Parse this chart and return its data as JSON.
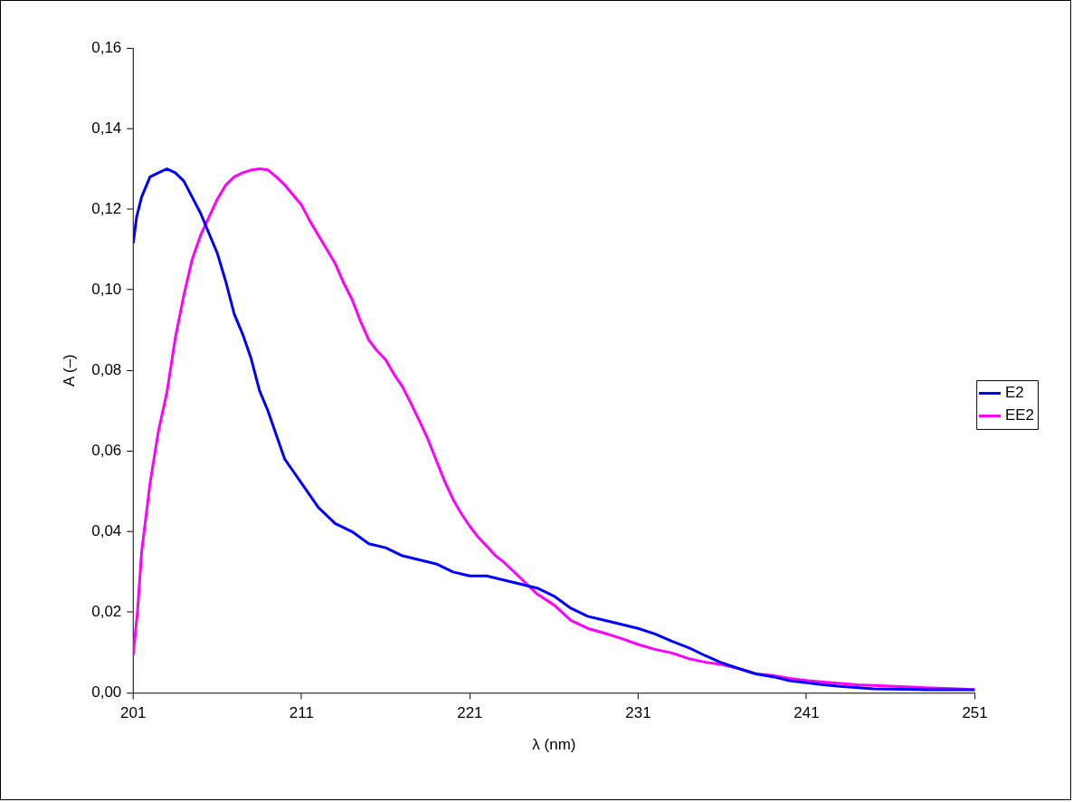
{
  "chart_data": {
    "type": "line",
    "xlabel": "λ (nm)",
    "ylabel": "A (–)",
    "xlim": [
      201,
      251
    ],
    "xticks": [
      201,
      211,
      221,
      231,
      241,
      251
    ],
    "ylim": [
      0,
      0.16
    ],
    "yticks": [
      {
        "value": 0,
        "label": "0,00"
      },
      {
        "value": 0.02,
        "label": "0,02"
      },
      {
        "value": 0.04,
        "label": "0,04"
      },
      {
        "value": 0.06,
        "label": "0,06"
      },
      {
        "value": 0.08,
        "label": "0,08"
      },
      {
        "value": 0.1,
        "label": "0,10"
      },
      {
        "value": 0.12,
        "label": "0,12"
      },
      {
        "value": 0.14,
        "label": "0,14"
      },
      {
        "value": 0.16,
        "label": "0,16"
      }
    ],
    "grid": false,
    "legend": "right",
    "marker": "none",
    "line_style": "solid",
    "series": [
      {
        "name": "E2",
        "color": "#0000ff",
        "x": [
          201,
          201.2,
          201.5,
          202,
          202.5,
          203,
          203.5,
          204,
          204.5,
          205,
          205.5,
          206,
          206.5,
          207,
          207.5,
          208,
          208.5,
          209,
          209.5,
          210,
          210.5,
          211,
          212,
          213,
          214,
          215,
          216,
          217,
          218,
          219,
          220,
          221,
          222,
          223,
          224,
          225,
          226,
          227,
          228,
          229,
          230,
          231,
          232,
          233,
          234,
          235,
          236,
          237,
          238,
          239,
          240,
          241,
          242,
          243,
          245,
          248,
          251
        ],
        "values": [
          0.1115,
          0.118,
          0.123,
          0.128,
          0.129,
          0.13,
          0.129,
          0.127,
          0.123,
          0.119,
          0.114,
          0.109,
          0.102,
          0.094,
          0.089,
          0.083,
          0.075,
          0.07,
          0.064,
          0.058,
          0.055,
          0.052,
          0.046,
          0.042,
          0.04,
          0.037,
          0.036,
          0.034,
          0.033,
          0.032,
          0.03,
          0.029,
          0.029,
          0.028,
          0.027,
          0.026,
          0.024,
          0.021,
          0.019,
          0.018,
          0.017,
          0.016,
          0.0146,
          0.0128,
          0.0112,
          0.0092,
          0.0074,
          0.006,
          0.0047,
          0.004,
          0.003,
          0.0025,
          0.002,
          0.0016,
          0.001,
          0.0008,
          0.0008
        ]
      },
      {
        "name": "EE2",
        "color": "#ff00ff",
        "x": [
          201,
          201.25,
          201.5,
          202,
          202.5,
          203,
          203.5,
          204,
          204.5,
          205,
          205.5,
          206,
          206.5,
          207,
          207.5,
          208,
          208.5,
          209,
          209.5,
          210,
          210.5,
          211,
          211.5,
          212,
          212.5,
          213,
          213.5,
          214,
          214.5,
          215,
          215.5,
          216,
          216.5,
          217,
          217.5,
          218,
          218.5,
          219,
          219.5,
          220,
          220.5,
          221,
          221.5,
          222,
          222.5,
          223,
          224,
          225,
          226,
          227,
          228,
          229,
          230,
          231,
          232,
          233,
          234,
          235,
          236,
          237,
          238,
          239,
          240,
          241,
          242,
          244,
          246,
          248,
          250,
          251
        ],
        "values": [
          0.0094,
          0.02,
          0.035,
          0.052,
          0.065,
          0.0745,
          0.088,
          0.0985,
          0.1075,
          0.1135,
          0.118,
          0.1225,
          0.126,
          0.128,
          0.129,
          0.1297,
          0.13,
          0.1297,
          0.128,
          0.126,
          0.1235,
          0.121,
          0.117,
          0.1135,
          0.11,
          0.1065,
          0.1017,
          0.0976,
          0.0922,
          0.0875,
          0.0848,
          0.0826,
          0.079,
          0.0759,
          0.0718,
          0.0675,
          0.063,
          0.0577,
          0.0525,
          0.048,
          0.0444,
          0.0413,
          0.0386,
          0.0364,
          0.0341,
          0.0325,
          0.0285,
          0.0245,
          0.0218,
          0.018,
          0.016,
          0.0148,
          0.0135,
          0.012,
          0.0108,
          0.0099,
          0.0085,
          0.0076,
          0.007,
          0.006,
          0.0047,
          0.0043,
          0.0036,
          0.0031,
          0.0027,
          0.002,
          0.0017,
          0.0013,
          0.001,
          0.0008
        ]
      }
    ]
  }
}
